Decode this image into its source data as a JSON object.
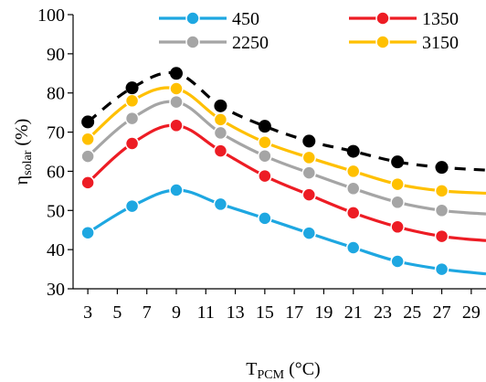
{
  "chart_data": {
    "type": "line",
    "xlabel": {
      "main": "T",
      "sub": "PCM",
      "unit": " (°C)"
    },
    "ylabel": {
      "main": "η",
      "sub": "solar",
      "unit": " (%)"
    },
    "ylim": [
      30,
      100
    ],
    "yticks": [
      30,
      40,
      50,
      60,
      70,
      80,
      90,
      100
    ],
    "x": [
      3,
      6,
      9,
      12,
      15,
      18,
      21,
      24,
      27,
      30
    ],
    "xticks": [
      3,
      5,
      7,
      9,
      11,
      13,
      15,
      17,
      19,
      21,
      23,
      25,
      27,
      29
    ],
    "xlim": [
      2,
      30
    ],
    "grid": false,
    "legend_position": "top",
    "series": [
      {
        "name": "450",
        "color": "#1ea7e1",
        "dashed": false,
        "values": [
          44.3,
          51.1,
          55.2,
          51.6,
          48.0,
          44.2,
          40.5,
          37.0,
          35.0,
          33.8
        ]
      },
      {
        "name": "1350",
        "color": "#ed1c24",
        "dashed": false,
        "values": [
          57.1,
          67.1,
          71.7,
          65.2,
          58.8,
          54.0,
          49.4,
          45.8,
          43.4,
          42.3
        ]
      },
      {
        "name": "2250",
        "color": "#a5a5a5",
        "dashed": false,
        "values": [
          63.8,
          73.5,
          77.7,
          69.8,
          63.9,
          59.6,
          55.6,
          52.1,
          50.0,
          49.1
        ]
      },
      {
        "name": "3150",
        "color": "#ffc000",
        "dashed": false,
        "values": [
          68.2,
          78.0,
          81.1,
          73.2,
          67.4,
          63.5,
          60.0,
          56.7,
          55.0,
          54.4
        ]
      },
      {
        "name": "",
        "color": "#000000",
        "dashed": true,
        "values": [
          72.6,
          81.3,
          85.0,
          76.7,
          71.5,
          67.7,
          65.1,
          62.4,
          61.0,
          60.3
        ]
      }
    ]
  }
}
